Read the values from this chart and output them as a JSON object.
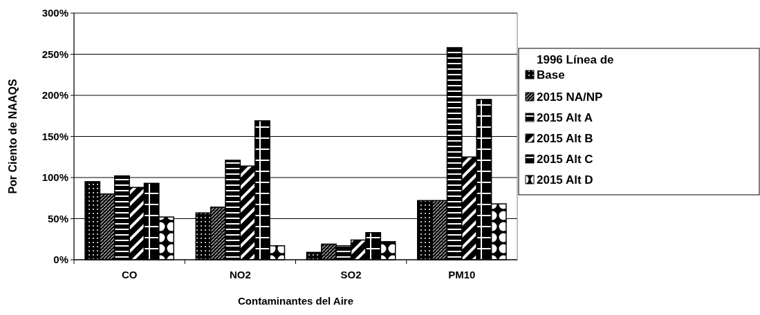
{
  "chart_data": {
    "type": "bar",
    "xlabel": "Contaminantes del Aire",
    "ylabel": "Por Ciento de NAAQS",
    "categories": [
      "CO",
      "NO2",
      "SO2",
      "PM10"
    ],
    "series": [
      {
        "name": "1996 Línea de Base",
        "color": "#000000",
        "values": [
          95,
          57,
          9,
          72
        ]
      },
      {
        "name": "2015 NA/NP",
        "color": "#000000",
        "values": [
          80,
          64,
          19,
          72
        ]
      },
      {
        "name": "2015 Alt A",
        "color": "#000000",
        "values": [
          102,
          121,
          17,
          258
        ]
      },
      {
        "name": "2015 Alt B",
        "color": "#000000",
        "values": [
          88,
          114,
          24,
          125
        ]
      },
      {
        "name": "2015 Alt C",
        "color": "#000000",
        "values": [
          93,
          169,
          33,
          195
        ]
      },
      {
        "name": "2015 Alt D",
        "color": "#000000",
        "values": [
          52,
          17,
          22,
          68
        ]
      }
    ],
    "ylim": [
      0,
      300
    ],
    "yticks": [
      {
        "value": 0,
        "label": "0%"
      },
      {
        "value": 50,
        "label": "50%"
      },
      {
        "value": 100,
        "label": "100%"
      },
      {
        "value": 150,
        "label": "150%"
      },
      {
        "value": 200,
        "label": "200%"
      },
      {
        "value": 250,
        "label": "250%"
      },
      {
        "value": 300,
        "label": "300%"
      }
    ],
    "grid": "y",
    "legend": "right"
  }
}
